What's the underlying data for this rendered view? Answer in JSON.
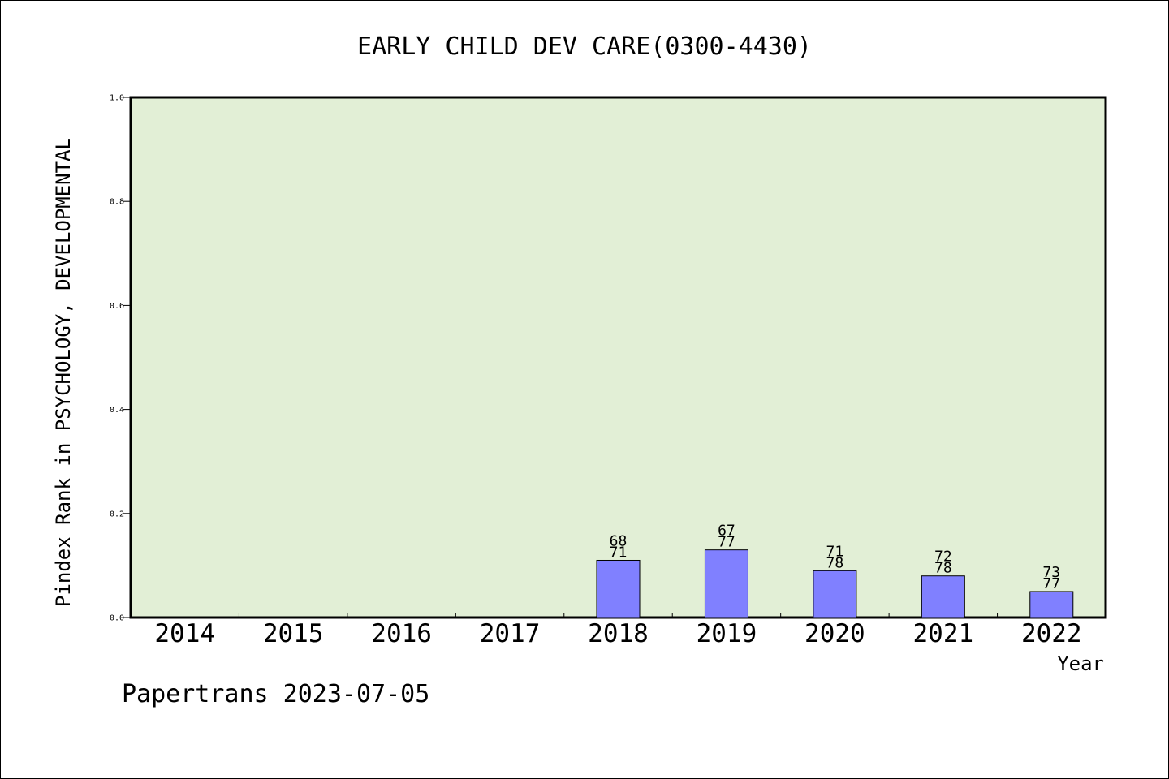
{
  "chart_data": {
    "type": "bar",
    "title": "EARLY CHILD DEV CARE(0300-4430)",
    "xlabel": "Year",
    "ylabel": "Pindex Rank in PSYCHOLOGY, DEVELOPMENTAL",
    "categories": [
      "2014",
      "2015",
      "2016",
      "2017",
      "2018",
      "2019",
      "2020",
      "2021",
      "2022"
    ],
    "values": [
      null,
      null,
      null,
      null,
      0.11,
      0.13,
      0.09,
      0.08,
      0.05
    ],
    "labels_top": [
      "",
      "",
      "",
      "",
      "68",
      "67",
      "71",
      "72",
      "73"
    ],
    "labels_bottom": [
      "",
      "",
      "",
      "",
      "71",
      "77",
      "78",
      "78",
      "77"
    ],
    "ylim": [
      0,
      1.0
    ],
    "yticks": [
      "0.0",
      "0.2",
      "0.4",
      "0.6",
      "0.8",
      "1.0"
    ],
    "grid": false,
    "colors": {
      "plot_background": "#e2efd6",
      "bar_fill": "#8080ff",
      "bar_stroke": "#000000"
    }
  },
  "footer": "Papertrans 2023-07-05"
}
